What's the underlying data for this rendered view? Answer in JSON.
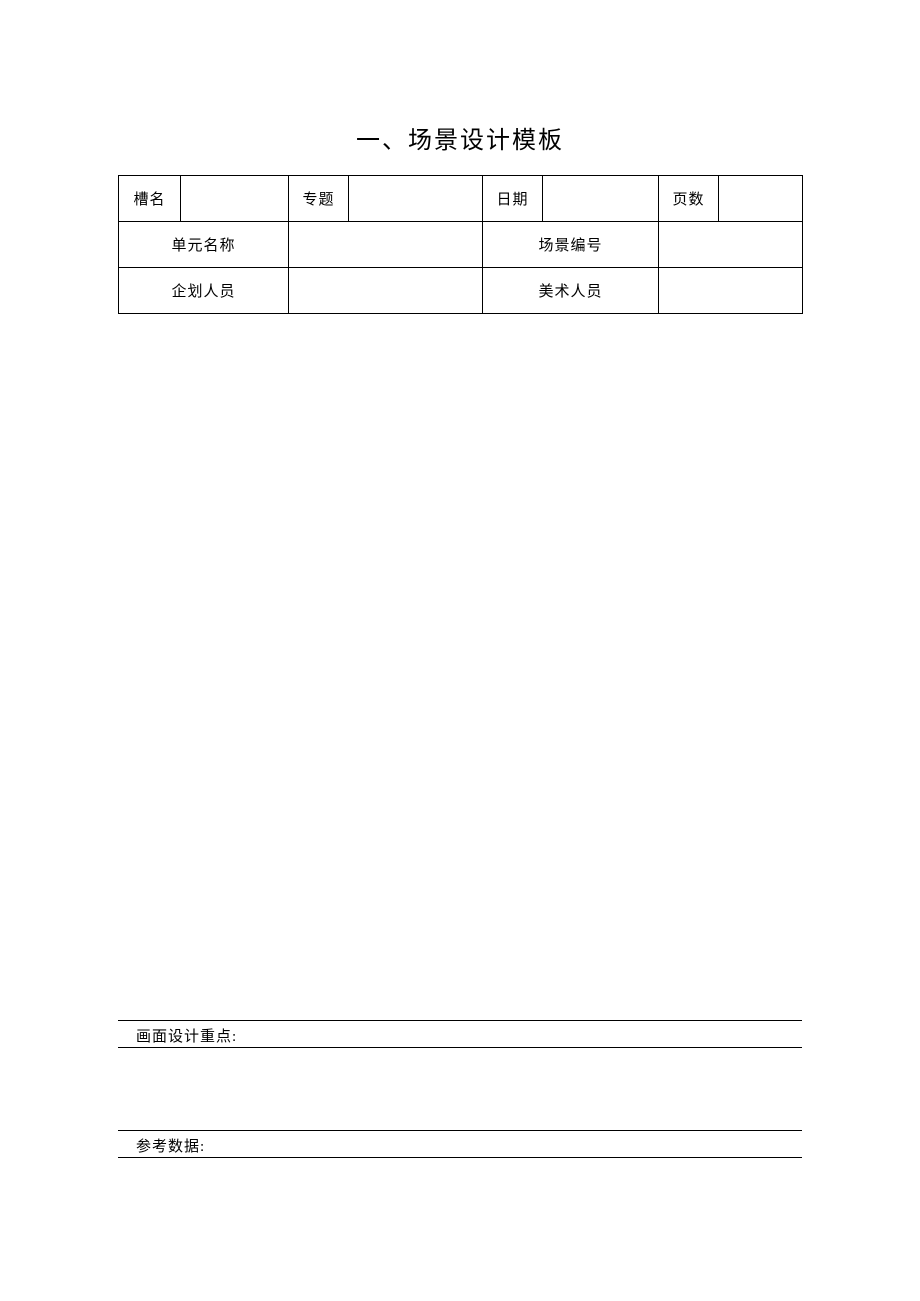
{
  "title": "一、场景设计模板",
  "header": {
    "row1": {
      "slotName": {
        "label": "槽名",
        "value": ""
      },
      "topic": {
        "label": "专题",
        "value": ""
      },
      "date": {
        "label": "日期",
        "value": ""
      },
      "pages": {
        "label": "页数",
        "value": ""
      }
    },
    "row2": {
      "unitName": {
        "label": "单元名称",
        "value": ""
      },
      "sceneNo": {
        "label": "场景编号",
        "value": ""
      }
    },
    "row3": {
      "planner": {
        "label": "企划人员",
        "value": ""
      },
      "artist": {
        "label": "美术人员",
        "value": ""
      }
    }
  },
  "sections": {
    "designPoints": "画面设计重点:",
    "referenceData": "参考数据:"
  },
  "style": {
    "pageBg": "#ffffff",
    "borderColor": "#000000",
    "textColor": "#000000",
    "titleFontSize": 24,
    "bodyFontSize": 15
  }
}
